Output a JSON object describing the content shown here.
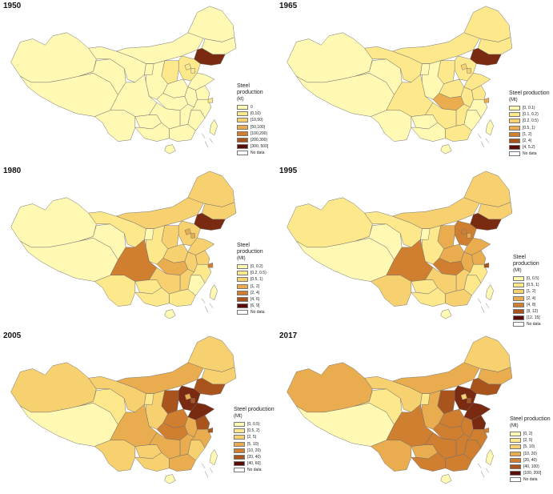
{
  "palette": {
    "border": "#6e6e6e",
    "no_data": "#ffffff",
    "shades": [
      "#fff9b3",
      "#fde98c",
      "#f7d170",
      "#e9ad4f",
      "#cf7f2f",
      "#a8541c",
      "#7a2a10",
      "#5a0c0a"
    ]
  },
  "panels": [
    {
      "year": "1950",
      "legend_title": "Steel production",
      "legend_unit": "(kt)",
      "classes": [
        "0",
        "[0,10)",
        "[10,50)",
        "[50,100)",
        "[100,200)",
        "[200,300)",
        "[300, 500]"
      ],
      "no_data_label": "No data",
      "levels": {
        "xinjiang": 0,
        "tibet": 0,
        "qinghai": 0,
        "gansu": 0,
        "inner_mongolia": 0,
        "heilongjiang": 0,
        "jilin": 0,
        "liaoning": 6,
        "hebei": 1,
        "shanxi": 1,
        "shandong": 0,
        "henan": 0,
        "shaanxi": 0,
        "ningxia": 0,
        "sichuan": 0,
        "yunnan": 0,
        "guizhou": 0,
        "hubei": 0,
        "hunan": 0,
        "guangxi": 0,
        "guangdong": 0,
        "fujian": 0,
        "jiangxi": 0,
        "anhui": 0,
        "jiangsu": 0,
        "zhejiang": 0,
        "taiwan": 0,
        "hainan": 0,
        "beijing": 1,
        "tianjin": 1,
        "shanghai": 1
      }
    },
    {
      "year": "1965",
      "legend_title": "Steel production",
      "legend_unit": "(Mt)",
      "classes": [
        "[0, 0.1)",
        "[0.1, 0.2)",
        "[0.2, 0.5)",
        "[0.5, 1)",
        "[1, 2)",
        "[2, 4)",
        "[4, 5.2)"
      ],
      "no_data_label": "No data",
      "levels": {
        "xinjiang": 0,
        "tibet": 0,
        "qinghai": 0,
        "gansu": 1,
        "inner_mongolia": 1,
        "heilongjiang": 1,
        "jilin": 1,
        "liaoning": 6,
        "hebei": 1,
        "shanxi": 1,
        "shandong": 1,
        "henan": 1,
        "shaanxi": 0,
        "ningxia": 0,
        "sichuan": 1,
        "yunnan": 0,
        "guizhou": 0,
        "hubei": 3,
        "hunan": 1,
        "guangxi": 0,
        "guangdong": 1,
        "fujian": 0,
        "jiangxi": 1,
        "anhui": 1,
        "jiangsu": 1,
        "zhejiang": 0,
        "taiwan": 0,
        "hainan": 0,
        "beijing": 2,
        "tianjin": 2,
        "shanghai": 3
      }
    },
    {
      "year": "1980",
      "legend_title": "Steel production",
      "legend_unit": "(Mt)",
      "classes": [
        "[0, 0.2)",
        "[0.2, 0.5)",
        "[0.5, 1)",
        "[1, 2)",
        "[2, 4)",
        "[4, 6)",
        "[6, 9]"
      ],
      "no_data_label": "No data",
      "levels": {
        "xinjiang": 0,
        "tibet": 0,
        "qinghai": 0,
        "gansu": 1,
        "inner_mongolia": 2,
        "heilongjiang": 2,
        "jilin": 2,
        "liaoning": 6,
        "hebei": 2,
        "shanxi": 2,
        "shandong": 2,
        "henan": 2,
        "shaanxi": 1,
        "ningxia": 0,
        "sichuan": 4,
        "yunnan": 1,
        "guizhou": 1,
        "hubei": 3,
        "hunan": 2,
        "guangxi": 1,
        "guangdong": 1,
        "fujian": 0,
        "jiangxi": 2,
        "anhui": 2,
        "jiangsu": 2,
        "zhejiang": 1,
        "taiwan": 0,
        "hainan": 0,
        "beijing": 3,
        "tianjin": 3,
        "shanghai": 4
      }
    },
    {
      "year": "1995",
      "legend_title": "Steel production",
      "legend_unit": "(Mt)",
      "classes": [
        "[0, 0.5)",
        "[0.5, 1)",
        "[1, 2)",
        "[2, 4)",
        "[4, 8)",
        "[8, 12)",
        "[12, 15]"
      ],
      "no_data_label": "No data",
      "levels": {
        "xinjiang": 1,
        "tibet": 0,
        "qinghai": 0,
        "gansu": 1,
        "inner_mongolia": 2,
        "heilongjiang": 2,
        "jilin": 2,
        "liaoning": 6,
        "hebei": 4,
        "shanxi": 3,
        "shandong": 3,
        "henan": 3,
        "shaanxi": 1,
        "ningxia": 0,
        "sichuan": 4,
        "yunnan": 2,
        "guizhou": 1,
        "hubei": 4,
        "hunan": 2,
        "guangxi": 1,
        "guangdong": 2,
        "fujian": 1,
        "jiangxi": 2,
        "anhui": 3,
        "jiangsu": 3,
        "zhejiang": 1,
        "taiwan": 0,
        "hainan": 0,
        "beijing": 4,
        "tianjin": 3,
        "shanghai": 5
      }
    },
    {
      "year": "2005",
      "legend_title": "Steel production",
      "legend_unit": "(Mt)",
      "classes": [
        "[0, 0.5)",
        "[0.5, 2)",
        "[2, 5)",
        "[5, 10)",
        "[10, 20)",
        "[20, 40)",
        "[40, 60]"
      ],
      "no_data_label": "No data",
      "levels": {
        "xinjiang": 2,
        "tibet": 0,
        "qinghai": 1,
        "gansu": 2,
        "inner_mongolia": 3,
        "heilongjiang": 2,
        "jilin": 2,
        "liaoning": 5,
        "hebei": 6,
        "shanxi": 5,
        "shandong": 6,
        "henan": 4,
        "shaanxi": 2,
        "ningxia": 1,
        "sichuan": 3,
        "yunnan": 2,
        "guizhou": 2,
        "hubei": 4,
        "hunan": 3,
        "guangxi": 2,
        "guangdong": 3,
        "fujian": 2,
        "jiangxi": 3,
        "anhui": 3,
        "jiangsu": 5,
        "zhejiang": 3,
        "taiwan": 0,
        "hainan": 0,
        "beijing": 3,
        "tianjin": 5,
        "shanghai": 5
      }
    },
    {
      "year": "2017",
      "legend_title": "Steel production",
      "legend_unit": "(Mt)",
      "classes": [
        "[0, 2)",
        "[2, 5)",
        "[5, 10)",
        "[10, 20)",
        "[20, 40)",
        "[40, 100)",
        "[100, 200]"
      ],
      "no_data_label": "No data",
      "levels": {
        "xinjiang": 3,
        "tibet": 0,
        "qinghai": 1,
        "gansu": 2,
        "inner_mongolia": 3,
        "heilongjiang": 2,
        "jilin": 3,
        "liaoning": 5,
        "hebei": 6,
        "shanxi": 5,
        "shandong": 6,
        "henan": 4,
        "shaanxi": 3,
        "ningxia": 1,
        "sichuan": 4,
        "yunnan": 3,
        "guizhou": 3,
        "hubei": 4,
        "hunan": 4,
        "guangxi": 4,
        "guangdong": 4,
        "fujian": 4,
        "jiangxi": 4,
        "anhui": 4,
        "jiangsu": 6,
        "zhejiang": 4,
        "taiwan": 0,
        "hainan": 0,
        "beijing": 2,
        "tianjin": 5,
        "shanghai": 4
      }
    }
  ]
}
